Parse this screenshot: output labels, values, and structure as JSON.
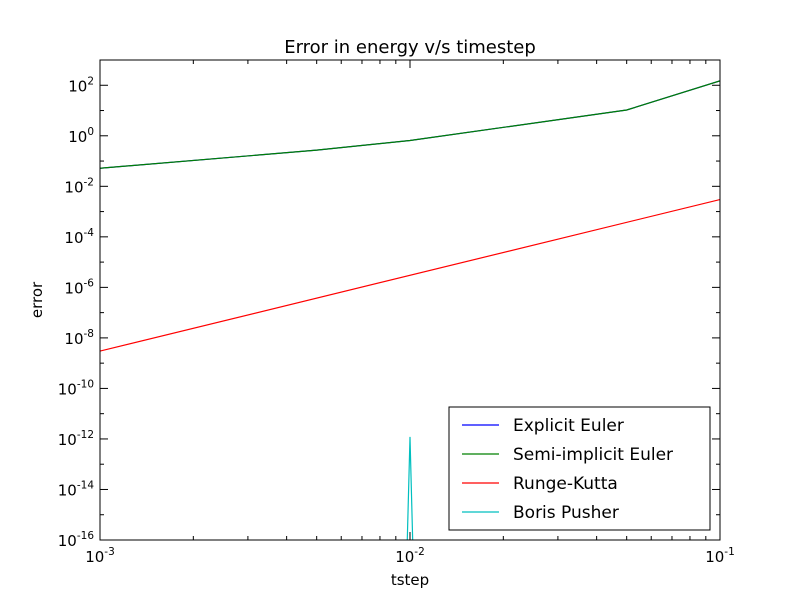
{
  "chart_data": {
    "type": "line",
    "title": "Error in energy v/s timestep",
    "xlabel": "tstep",
    "ylabel": "error",
    "xscale": "log",
    "yscale": "log",
    "xlim": [
      0.001,
      0.1
    ],
    "ylim": [
      1e-16,
      1000
    ],
    "grid": false,
    "legend_position": "lower-right",
    "x_ticks": [
      {
        "value": 0.001,
        "base": "10",
        "exp": "-3"
      },
      {
        "value": 0.01,
        "base": "10",
        "exp": "-2"
      },
      {
        "value": 0.1,
        "base": "10",
        "exp": "-1"
      }
    ],
    "y_ticks": [
      {
        "value": 1e-16,
        "base": "10",
        "exp": "-16"
      },
      {
        "value": 1e-14,
        "base": "10",
        "exp": "-14"
      },
      {
        "value": 1e-12,
        "base": "10",
        "exp": "-12"
      },
      {
        "value": 1e-10,
        "base": "10",
        "exp": "-10"
      },
      {
        "value": 1e-08,
        "base": "10",
        "exp": "-8"
      },
      {
        "value": 1e-06,
        "base": "10",
        "exp": "-6"
      },
      {
        "value": 0.0001,
        "base": "10",
        "exp": "-4"
      },
      {
        "value": 0.01,
        "base": "10",
        "exp": "-2"
      },
      {
        "value": 1,
        "base": "10",
        "exp": "0"
      },
      {
        "value": 100,
        "base": "10",
        "exp": "2"
      }
    ],
    "series": [
      {
        "name": "Explicit Euler",
        "color": "#0000ff",
        "points": [
          [
            0.001,
            0.052
          ],
          [
            0.005,
            0.27
          ],
          [
            0.01,
            0.65
          ],
          [
            0.05,
            10.5
          ],
          [
            0.1,
            150
          ]
        ]
      },
      {
        "name": "Semi-implicit Euler",
        "color": "#008000",
        "points": [
          [
            0.001,
            0.052
          ],
          [
            0.005,
            0.27
          ],
          [
            0.01,
            0.65
          ],
          [
            0.05,
            10.5
          ],
          [
            0.1,
            150
          ]
        ]
      },
      {
        "name": "Runge-Kutta",
        "color": "#ff0000",
        "points": [
          [
            0.001,
            3e-09
          ],
          [
            0.1,
            0.003
          ]
        ]
      },
      {
        "name": "Boris Pusher",
        "color": "#00bfbf",
        "points": [
          [
            0.0098,
            1e-16
          ],
          [
            0.01,
            1.2e-12
          ],
          [
            0.0102,
            1e-16
          ]
        ]
      }
    ]
  }
}
